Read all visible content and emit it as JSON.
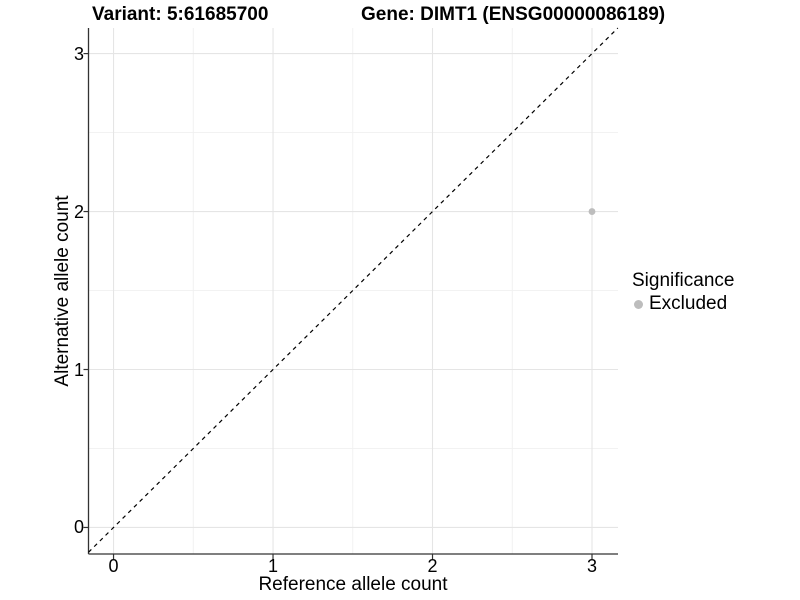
{
  "chart_data": {
    "type": "scatter",
    "titles": {
      "left": "Variant: 5:61685700",
      "right": "Gene: DIMT1 (ENSG00000086189)"
    },
    "xlabel": "Reference allele count",
    "ylabel": "Alternative allele count",
    "x_ticks": [
      0,
      1,
      2,
      3
    ],
    "x_tick_labels": [
      "0",
      "1",
      "2",
      "3"
    ],
    "y_ticks": [
      0,
      1,
      2,
      3
    ],
    "y_tick_labels": [
      "0",
      "1",
      "2",
      "3"
    ],
    "x_minor_ticks": [
      0.5,
      1.5,
      2.5
    ],
    "y_minor_ticks": [
      0.5,
      1.5,
      2.5
    ],
    "xlim": [
      -0.157,
      3.163
    ],
    "ylim": [
      -0.168,
      3.162
    ],
    "grid": "major+minor",
    "series": [
      {
        "name": "Excluded",
        "color": "#bdbdbd",
        "points": [
          {
            "x": 3,
            "y": 2
          }
        ]
      }
    ],
    "reference_line": {
      "type": "identity",
      "slope": 1,
      "intercept": 0,
      "style": "dashed",
      "color": "#000000"
    },
    "legend": {
      "title": "Significance",
      "position": "right",
      "items": [
        {
          "label": "Excluded",
          "color": "#bdbdbd",
          "marker": "circle"
        }
      ]
    },
    "colors": {
      "background": "#ffffff",
      "grid_major": "#e5e5e5",
      "grid_minor": "#f0f0f0",
      "axis_line": "#333333",
      "tick_mark": "#333333",
      "text": "#000000"
    }
  }
}
